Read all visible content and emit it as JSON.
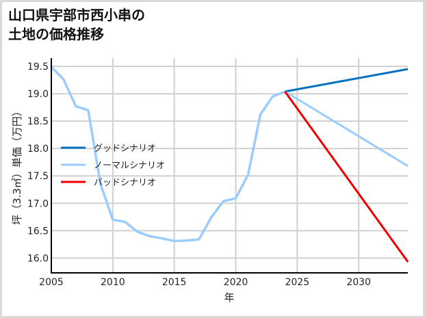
{
  "title": {
    "line1": "山口県宇部市西小串の",
    "line2": "土地の価格推移"
  },
  "chart_data": {
    "type": "line",
    "title": "山口県宇部市西小串の土地の価格推移",
    "xlabel": "年",
    "ylabel": "坪（3.3㎡）単価（万円）",
    "xlim": [
      2005,
      2034
    ],
    "ylim": [
      15.73,
      19.65
    ],
    "x_ticks": [
      2005,
      2010,
      2015,
      2020,
      2025,
      2030
    ],
    "x_tick_labels": [
      "2005",
      "2010",
      "2015",
      "2020",
      "2025",
      "2030"
    ],
    "y_ticks": [
      16.0,
      16.5,
      17.0,
      17.5,
      18.0,
      18.5,
      19.0,
      19.5
    ],
    "y_tick_labels": [
      "16.0",
      "16.5",
      "17.0",
      "17.5",
      "18.0",
      "18.5",
      "19.0",
      "19.5"
    ],
    "grid": true,
    "legend_position": "center-left",
    "historical": {
      "x": [
        2005,
        2006,
        2007,
        2008,
        2009,
        2010,
        2011,
        2012,
        2013,
        2014,
        2015,
        2016,
        2017,
        2018,
        2019,
        2020,
        2021,
        2022,
        2023,
        2024
      ],
      "values": [
        19.49,
        19.26,
        18.77,
        18.7,
        17.35,
        16.7,
        16.66,
        16.48,
        16.4,
        16.36,
        16.31,
        16.32,
        16.34,
        16.74,
        17.04,
        17.09,
        17.52,
        18.62,
        18.95,
        19.04
      ]
    },
    "series": [
      {
        "name": "グッドシナリオ",
        "color": "#0070c0",
        "x": [
          2024,
          2034
        ],
        "values": [
          19.04,
          19.45
        ]
      },
      {
        "name": "ノーマルシナリオ",
        "color": "#99ccff",
        "x": [
          2024,
          2034
        ],
        "values": [
          19.04,
          17.68
        ]
      },
      {
        "name": "バッドシナリオ",
        "color": "#ee0000",
        "x": [
          2024,
          2034
        ],
        "values": [
          19.04,
          15.93
        ]
      }
    ]
  },
  "legend": {
    "items": [
      {
        "label": "グッドシナリオ",
        "color": "#0070c0"
      },
      {
        "label": "ノーマルシナリオ",
        "color": "#99ccff"
      },
      {
        "label": "バッドシナリオ",
        "color": "#ee0000"
      }
    ]
  },
  "colors": {
    "grid": "#d0d0d0",
    "axis": "#000000",
    "historical": "#99ccff",
    "border": "#d9d9d9"
  }
}
